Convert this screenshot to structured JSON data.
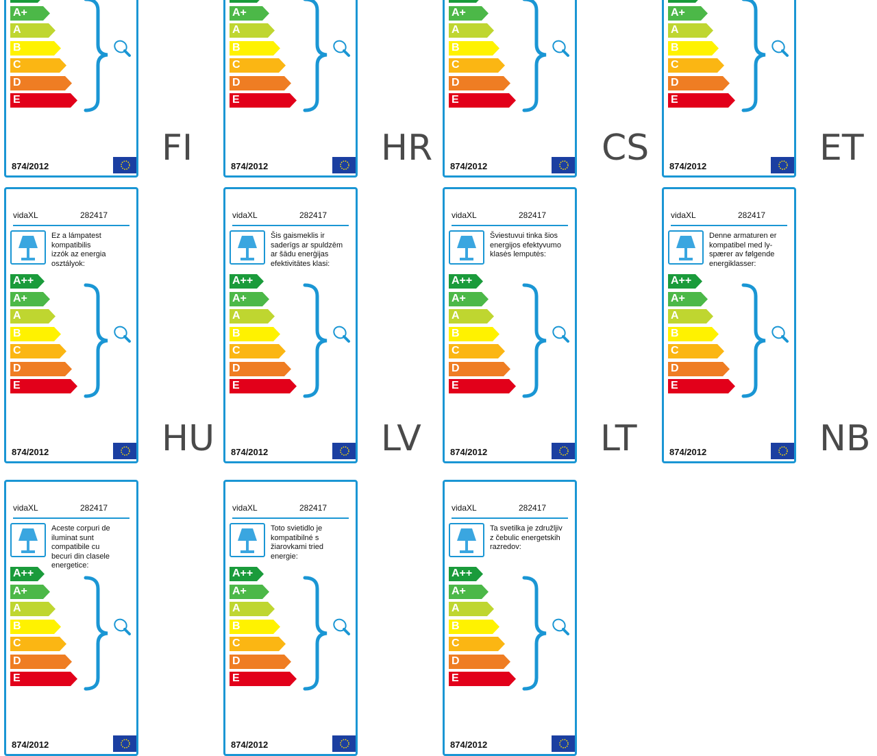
{
  "header_brand": "vidaXL",
  "header_code": "282417",
  "regulation": "874/2012",
  "energy_classes": [
    {
      "label": "A++",
      "color": "#1a9b3b"
    },
    {
      "label": "A+",
      "color": "#4cb848"
    },
    {
      "label": "A",
      "color": "#bfd630"
    },
    {
      "label": "B",
      "color": "#fff200"
    },
    {
      "label": "C",
      "color": "#fbb613"
    },
    {
      "label": "D",
      "color": "#ef7d23"
    },
    {
      "label": "E",
      "color": "#e2001a"
    }
  ],
  "labels": [
    {
      "code": "FI",
      "text": ""
    },
    {
      "code": "HR",
      "text": ""
    },
    {
      "code": "CS",
      "text": ""
    },
    {
      "code": "ET",
      "text": ""
    },
    {
      "code": "HU",
      "text": "Ez a lámpatest\nkompatibilis\nizzók az energia\nosztályok:"
    },
    {
      "code": "LV",
      "text": "Šis gaismeklis ir\nsaderīgs ar spuldzēm\nar šādu enerģijas\nefektivitātes klasi:"
    },
    {
      "code": "LT",
      "text": "Šviestuvui tinka šios\nenergijos efektyvumo\nklasės lemputės:"
    },
    {
      "code": "NB",
      "text": "Denne armaturen er\nkompatibel med ly-\nspærer av følgende\nenergiklasser:"
    },
    {
      "code": "",
      "text": "Aceste corpuri de\niluminat sunt\ncompatibile cu\nbecuri din clasele\nenergetice:"
    },
    {
      "code": "",
      "text": "Toto svietidlo je\nkompatibilné s\nžiarovkami tried\nenergie:"
    },
    {
      "code": "",
      "text": "Ta svetilka je združljiv\nz čebulic energetskih\nrazredov:"
    }
  ]
}
